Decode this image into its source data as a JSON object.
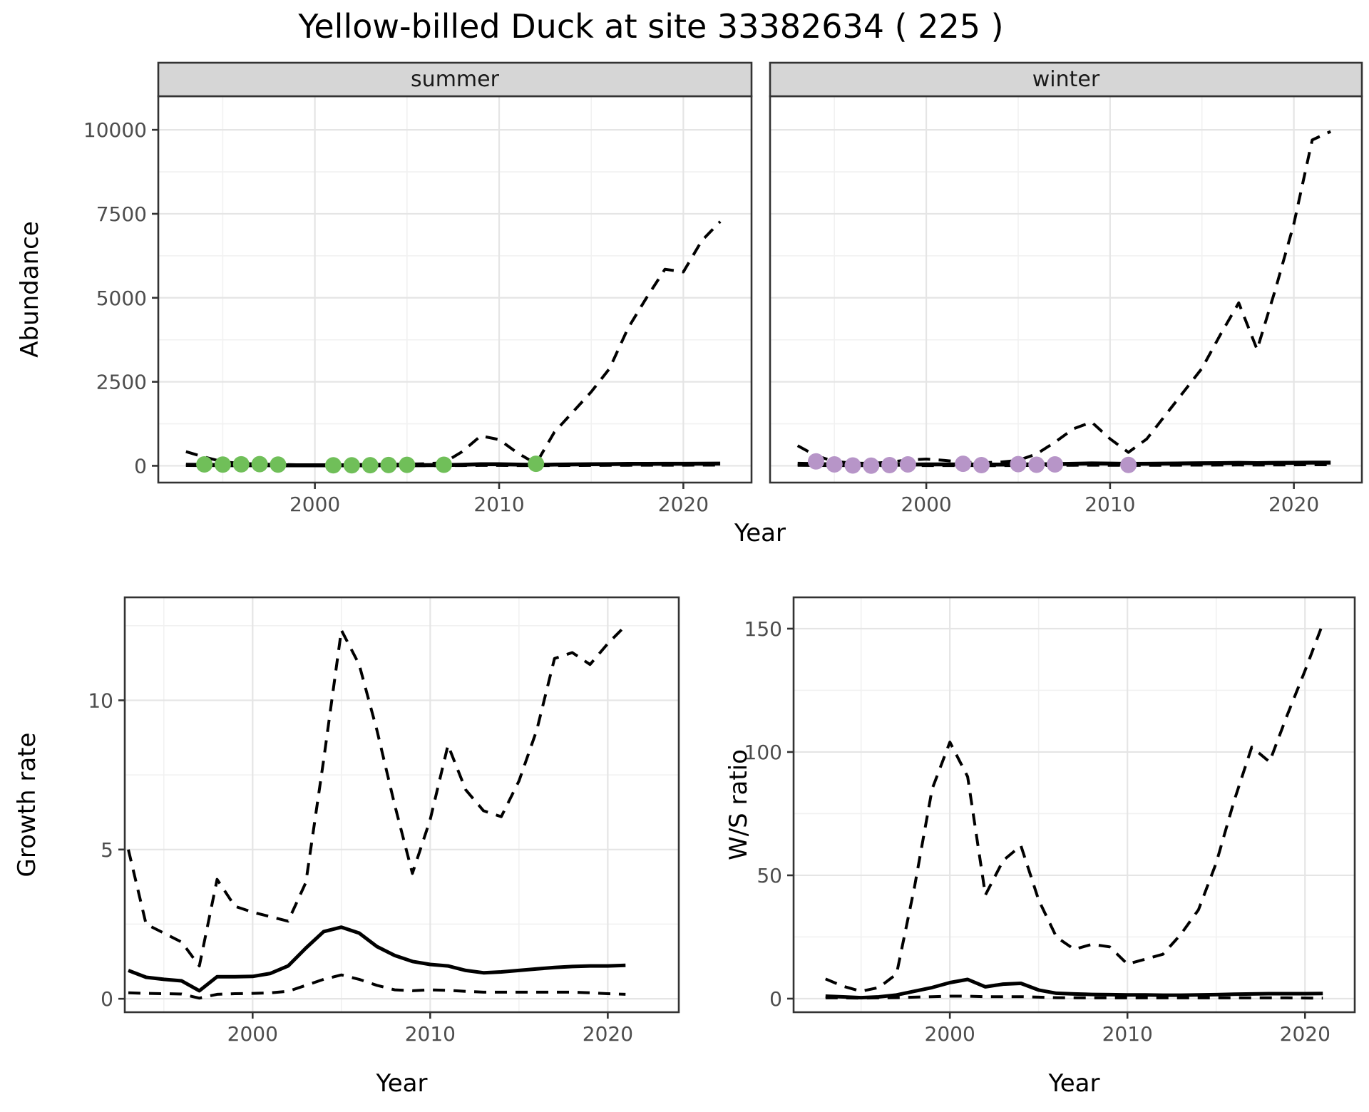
{
  "title": "Yellow-billed Duck at site 33382634 ( 225 )",
  "labels": {
    "x": "Year",
    "y_abundance": "Abundance",
    "y_growth": "Growth rate",
    "y_ws": "W/S ratio"
  },
  "facets": {
    "summer": "summer",
    "winter": "winter"
  },
  "colors": {
    "summer_dot": "#70bf59",
    "winter_dot": "#b795c8",
    "line": "#000000",
    "strip_bg": "#d6d6d6",
    "panel_bg": "#ffffff",
    "grid_major": "#e5e5e5",
    "grid_minor": "#f1f1f1",
    "panel_border": "#333333",
    "tick_mark": "#333333",
    "tick_text": "#4d4d4d"
  },
  "chart_data": [
    {
      "id": "abundance_summer",
      "type": "line",
      "facet": "summer",
      "xlabel": "Year",
      "ylabel": "Abundance",
      "x": [
        1993,
        1994,
        1995,
        1996,
        1997,
        1998,
        1999,
        2000,
        2001,
        2002,
        2003,
        2004,
        2005,
        2006,
        2007,
        2008,
        2009,
        2010,
        2011,
        2012,
        2013,
        2014,
        2015,
        2016,
        2017,
        2018,
        2019,
        2020,
        2021,
        2022
      ],
      "series": [
        {
          "name": "upper_ci",
          "style": "dashed",
          "values": [
            420,
            260,
            120,
            70,
            50,
            40,
            30,
            30,
            30,
            35,
            40,
            45,
            50,
            60,
            90,
            420,
            890,
            780,
            380,
            60,
            1000,
            1600,
            2200,
            2900,
            4100,
            5000,
            5850,
            5770,
            6700,
            7270
          ]
        },
        {
          "name": "estimate",
          "style": "solid",
          "values": [
            30,
            25,
            22,
            20,
            18,
            15,
            15,
            15,
            15,
            15,
            15,
            18,
            20,
            20,
            22,
            30,
            45,
            45,
            35,
            25,
            35,
            40,
            45,
            50,
            55,
            58,
            60,
            60,
            62,
            65
          ]
        },
        {
          "name": "lower_ci",
          "style": "dashed",
          "values": [
            10,
            8,
            6,
            5,
            4,
            3,
            3,
            3,
            3,
            3,
            3,
            4,
            4,
            4,
            5,
            8,
            12,
            12,
            8,
            4,
            8,
            10,
            12,
            14,
            16,
            18,
            18,
            18,
            19,
            20
          ]
        }
      ],
      "points": {
        "name": "survey_counts",
        "color_key": "summer_dot",
        "years": [
          1994,
          1995,
          1996,
          1997,
          1998,
          2001,
          2002,
          2003,
          2004,
          2005,
          2007,
          2012
        ],
        "values": [
          40,
          35,
          45,
          50,
          35,
          15,
          15,
          18,
          22,
          28,
          30,
          60
        ]
      },
      "xticks": [
        2000,
        2010,
        2020
      ],
      "xminor": [
        1995,
        2005,
        2015
      ],
      "yticks": [
        0,
        2500,
        5000,
        7500,
        10000
      ],
      "yminor": [
        1250,
        3750,
        6250,
        8750
      ],
      "xlim": [
        1991.5,
        2023.7
      ],
      "ylim": [
        -500,
        11000
      ],
      "show_ytick_labels": true
    },
    {
      "id": "abundance_winter",
      "type": "line",
      "facet": "winter",
      "xlabel": "Year",
      "ylabel": "Abundance",
      "x": [
        1993,
        1994,
        1995,
        1996,
        1997,
        1998,
        1999,
        2000,
        2001,
        2002,
        2003,
        2004,
        2005,
        2006,
        2007,
        2008,
        2009,
        2010,
        2011,
        2012,
        2013,
        2014,
        2015,
        2016,
        2017,
        2018,
        2019,
        2020,
        2021,
        2022
      ],
      "series": [
        {
          "name": "upper_ci",
          "style": "dashed",
          "values": [
            600,
            300,
            130,
            80,
            70,
            110,
            170,
            200,
            160,
            110,
            90,
            110,
            160,
            350,
            700,
            1100,
            1300,
            800,
            400,
            800,
            1500,
            2200,
            2900,
            3900,
            4850,
            3460,
            5260,
            7200,
            9700,
            9950
          ]
        },
        {
          "name": "estimate",
          "style": "solid",
          "values": [
            60,
            50,
            40,
            35,
            30,
            30,
            35,
            40,
            40,
            38,
            35,
            35,
            38,
            42,
            50,
            60,
            70,
            65,
            55,
            60,
            65,
            70,
            75,
            80,
            85,
            80,
            85,
            90,
            95,
            95
          ]
        },
        {
          "name": "lower_ci",
          "style": "dashed",
          "values": [
            15,
            10,
            8,
            6,
            5,
            5,
            6,
            8,
            8,
            7,
            6,
            6,
            7,
            9,
            12,
            15,
            18,
            16,
            12,
            14,
            16,
            18,
            20,
            22,
            25,
            22,
            25,
            28,
            30,
            30
          ]
        }
      ],
      "points": {
        "name": "survey_counts",
        "color_key": "winter_dot",
        "years": [
          1994,
          1995,
          1996,
          1997,
          1998,
          1999,
          2002,
          2003,
          2005,
          2006,
          2007,
          2011
        ],
        "values": [
          130,
          40,
          10,
          5,
          20,
          40,
          60,
          20,
          50,
          30,
          40,
          25
        ]
      },
      "xticks": [
        2000,
        2010,
        2020
      ],
      "xminor": [
        1995,
        2005,
        2015
      ],
      "yticks": [
        0,
        2500,
        5000,
        7500,
        10000
      ],
      "yminor": [
        1250,
        3750,
        6250,
        8750
      ],
      "xlim": [
        1991.5,
        2023.7
      ],
      "ylim": [
        -500,
        11000
      ],
      "show_ytick_labels": false
    },
    {
      "id": "growth_rate",
      "type": "line",
      "xlabel": "Year",
      "ylabel": "Growth rate",
      "x": [
        1993,
        1994,
        1995,
        1996,
        1997,
        1998,
        1999,
        2000,
        2001,
        2002,
        2003,
        2004,
        2005,
        2006,
        2007,
        2008,
        2009,
        2010,
        2011,
        2012,
        2013,
        2014,
        2015,
        2016,
        2017,
        2018,
        2019,
        2020,
        2021
      ],
      "series": [
        {
          "name": "upper_ci",
          "style": "dashed",
          "values": [
            5.0,
            2.5,
            2.2,
            1.9,
            1.1,
            4.0,
            3.1,
            2.9,
            2.75,
            2.6,
            3.9,
            8.0,
            12.35,
            11.2,
            9.0,
            6.5,
            4.2,
            6.0,
            8.5,
            7.0,
            6.3,
            6.1,
            7.3,
            9.0,
            11.4,
            11.6,
            11.2,
            11.9,
            12.5
          ]
        },
        {
          "name": "estimate",
          "style": "solid",
          "values": [
            0.95,
            0.72,
            0.65,
            0.6,
            0.27,
            0.74,
            0.74,
            0.75,
            0.85,
            1.1,
            1.7,
            2.25,
            2.4,
            2.2,
            1.75,
            1.45,
            1.25,
            1.15,
            1.1,
            0.95,
            0.87,
            0.9,
            0.95,
            1.0,
            1.05,
            1.08,
            1.1,
            1.1,
            1.12
          ]
        },
        {
          "name": "lower_ci",
          "style": "dashed",
          "values": [
            0.2,
            0.18,
            0.17,
            0.16,
            0.02,
            0.15,
            0.17,
            0.18,
            0.2,
            0.25,
            0.45,
            0.65,
            0.8,
            0.65,
            0.45,
            0.3,
            0.27,
            0.3,
            0.28,
            0.25,
            0.22,
            0.22,
            0.22,
            0.22,
            0.22,
            0.22,
            0.2,
            0.17,
            0.15
          ]
        }
      ],
      "xticks": [
        2000,
        2010,
        2020
      ],
      "xminor": [
        1995,
        2005,
        2015
      ],
      "yticks": [
        0,
        5,
        10
      ],
      "yminor": [
        2.5,
        7.5,
        12.5
      ],
      "xlim": [
        1992.8,
        2024.0
      ],
      "ylim": [
        -0.45,
        13.45
      ],
      "show_ytick_labels": true
    },
    {
      "id": "ws_ratio",
      "type": "line",
      "xlabel": "Year",
      "ylabel": "W/S ratio",
      "x": [
        1993,
        1994,
        1995,
        1996,
        1997,
        1998,
        1999,
        2000,
        2001,
        2002,
        2003,
        2004,
        2005,
        2006,
        2007,
        2008,
        2009,
        2010,
        2011,
        2012,
        2013,
        2014,
        2015,
        2016,
        2017,
        2018,
        2019,
        2020,
        2021
      ],
      "series": [
        {
          "name": "upper_ci",
          "style": "dashed",
          "values": [
            8,
            5,
            3,
            4.5,
            10,
            45,
            85,
            104,
            90,
            42,
            56,
            62,
            40,
            25,
            20,
            22,
            21,
            14,
            16,
            18,
            26,
            36,
            55,
            80,
            102,
            96,
            115,
            133,
            152
          ]
        },
        {
          "name": "estimate",
          "style": "solid",
          "values": [
            1.0,
            0.7,
            0.4,
            0.7,
            1.5,
            3.0,
            4.5,
            6.5,
            7.8,
            4.8,
            5.9,
            6.2,
            3.5,
            2.2,
            1.9,
            1.7,
            1.6,
            1.5,
            1.5,
            1.4,
            1.4,
            1.5,
            1.6,
            1.8,
            1.9,
            2.0,
            2.0,
            2.0,
            2.1
          ]
        },
        {
          "name": "lower_ci",
          "style": "dashed",
          "values": [
            0.3,
            0.3,
            0.2,
            0.3,
            0.4,
            0.6,
            0.8,
            1.0,
            1.0,
            0.8,
            0.8,
            0.8,
            0.6,
            0.4,
            0.35,
            0.3,
            0.3,
            0.3,
            0.3,
            0.3,
            0.3,
            0.3,
            0.3,
            0.3,
            0.3,
            0.3,
            0.3,
            0.25,
            0.2
          ]
        }
      ],
      "xticks": [
        2000,
        2010,
        2020
      ],
      "xminor": [
        1995,
        2005,
        2015
      ],
      "yticks": [
        0,
        50,
        100,
        150
      ],
      "yminor": [
        25,
        75,
        125
      ],
      "xlim": [
        1991.2,
        2022.8
      ],
      "ylim": [
        -5.5,
        162.7
      ],
      "show_ytick_labels": true
    }
  ]
}
